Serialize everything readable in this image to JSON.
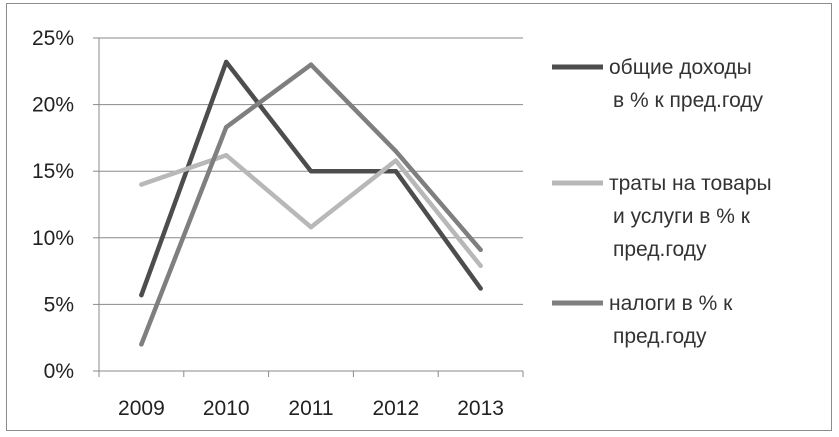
{
  "chart_data": {
    "type": "line",
    "title": "",
    "xlabel": "",
    "ylabel": "",
    "x": [
      "2009",
      "2010",
      "2011",
      "2012",
      "2013"
    ],
    "ylim": [
      0,
      25
    ],
    "yticks": [
      "0%",
      "5%",
      "10%",
      "15%",
      "20%",
      "25%"
    ],
    "grid": "horizontal",
    "legend_position": "right",
    "series": [
      {
        "name": "общие доходы в % к пред.году",
        "legend_lines": [
          "общие доходы",
          "в % к пред.году"
        ],
        "color": "#4d4d4d",
        "values": [
          5.7,
          23.2,
          15.0,
          15.0,
          6.2
        ]
      },
      {
        "name": "траты на товары и услуги в % к пред.году",
        "legend_lines": [
          "траты на товары",
          "и услуги в % к",
          "пред.году"
        ],
        "color": "#b8b8b8",
        "values": [
          14.0,
          16.2,
          10.8,
          15.8,
          7.9
        ]
      },
      {
        "name": "налоги в % к пред.году",
        "legend_lines": [
          "налоги в % к",
          "пред.году"
        ],
        "color": "#7f7f7f",
        "values": [
          2.0,
          18.3,
          23.0,
          16.5,
          9.1
        ]
      }
    ]
  }
}
